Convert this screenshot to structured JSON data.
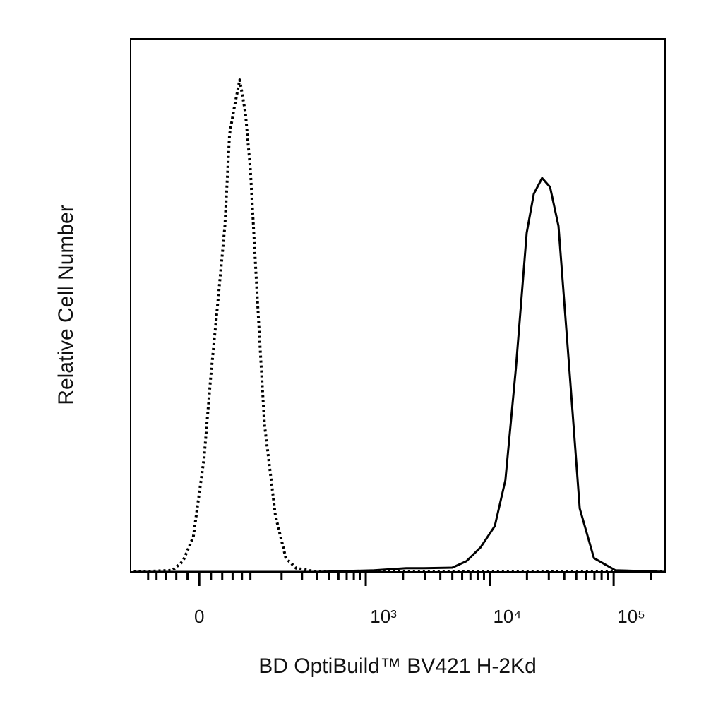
{
  "chart_data": {
    "type": "line",
    "x_label": "BD OptiBuild™ BV421 H-2Kd",
    "y_label": "Relative Cell Number",
    "xscale": "biexponential",
    "xlim": [
      -150,
      260000
    ],
    "ylim": [
      0,
      100
    ],
    "xticks": [
      0,
      {
        "value": 1000,
        "label": "10³"
      },
      {
        "value": 10000,
        "label": "10⁴"
      },
      {
        "value": 100000,
        "label": "10⁵"
      }
    ],
    "xticks_minor": [
      -100,
      -80,
      -60,
      -40,
      -20,
      20,
      40,
      60,
      80,
      100,
      200,
      300,
      400,
      500,
      600,
      700,
      800,
      900,
      2000,
      3000,
      4000,
      5000,
      6000,
      7000,
      8000,
      9000,
      20000,
      30000,
      40000,
      50000,
      60000,
      70000,
      80000,
      90000,
      200000
    ],
    "series": [
      {
        "color": "#000000",
        "line_style": "dotted",
        "x": [
          -140,
          -47,
          -28,
          -10,
          8,
          20,
          33,
          45,
          54,
          64,
          75,
          88,
          100,
          118,
          139,
          176,
          218,
          267,
          404,
          258000
        ],
        "values": [
          0,
          0.3,
          2.0,
          6.6,
          21.2,
          37.1,
          51.7,
          64.9,
          82.1,
          87.4,
          92.3,
          86.1,
          75.5,
          51.7,
          27.8,
          10.6,
          2.6,
          0.7,
          0,
          0
        ]
      },
      {
        "color": "#000000",
        "line_style": "solid",
        "x": [
          -140,
          404,
          1170,
          2120,
          2950,
          4990,
          6490,
          8440,
          11000,
          13400,
          16300,
          19900,
          22700,
          26500,
          30700,
          35900,
          43800,
          53300,
          69300,
          103000,
          258000
        ],
        "values": [
          0,
          0,
          0.3,
          0.7,
          0.7,
          0.8,
          2.0,
          4.6,
          8.6,
          17.2,
          38.4,
          63.6,
          70.9,
          73.9,
          72.2,
          64.9,
          38.4,
          11.9,
          2.6,
          0.3,
          0
        ]
      }
    ]
  }
}
